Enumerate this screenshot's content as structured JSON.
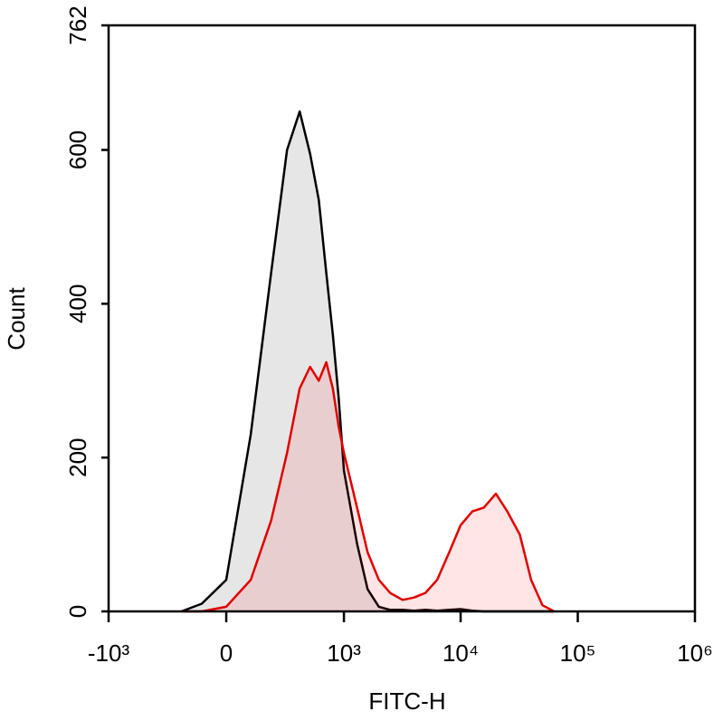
{
  "chart_data": {
    "type": "histogram",
    "x_label": "FITC-H",
    "y_label": "Count",
    "x_scale": "logicle",
    "xlim": [
      -1000,
      1000000
    ],
    "xticks": [
      {
        "value": -1000,
        "label": "-10³"
      },
      0,
      {
        "value": 1000,
        "label": "10³"
      },
      {
        "value": 10000,
        "label": "10⁴"
      },
      {
        "value": 100000,
        "label": "10⁵"
      },
      {
        "value": 1000000,
        "label": "10⁶"
      }
    ],
    "ylim": [
      0,
      762
    ],
    "yticks": [
      0,
      200,
      400,
      600,
      762
    ],
    "x": [
      -200,
      -100,
      0,
      100,
      200,
      300,
      400,
      500,
      600,
      700,
      800,
      900,
      1000,
      1300,
      1600,
      2000,
      2500,
      3200,
      4000,
      5000,
      6300,
      8000,
      10000,
      12600,
      15800,
      20000,
      25000,
      32000,
      40000,
      50000,
      63000
    ],
    "series": [
      {
        "color": "#000000",
        "fill": "#e6e6e6",
        "values": [
          0,
          10,
          41,
          230,
          440,
          600,
          650,
          595,
          535,
          440,
          360,
          277,
          183,
          88,
          29,
          6,
          2,
          2,
          1,
          2,
          1,
          2,
          3,
          1,
          0,
          0,
          0,
          0,
          0,
          0,
          0
        ]
      },
      {
        "color": "#e00000",
        "fill": "rgba(255,0,0,0.1)",
        "values": [
          0,
          0,
          6,
          41,
          118,
          206,
          290,
          318,
          300,
          324,
          290,
          240,
          206,
          135,
          77,
          41,
          24,
          15,
          18,
          24,
          41,
          77,
          112,
          130,
          135,
          153,
          130,
          100,
          41,
          8,
          0
        ]
      }
    ]
  }
}
